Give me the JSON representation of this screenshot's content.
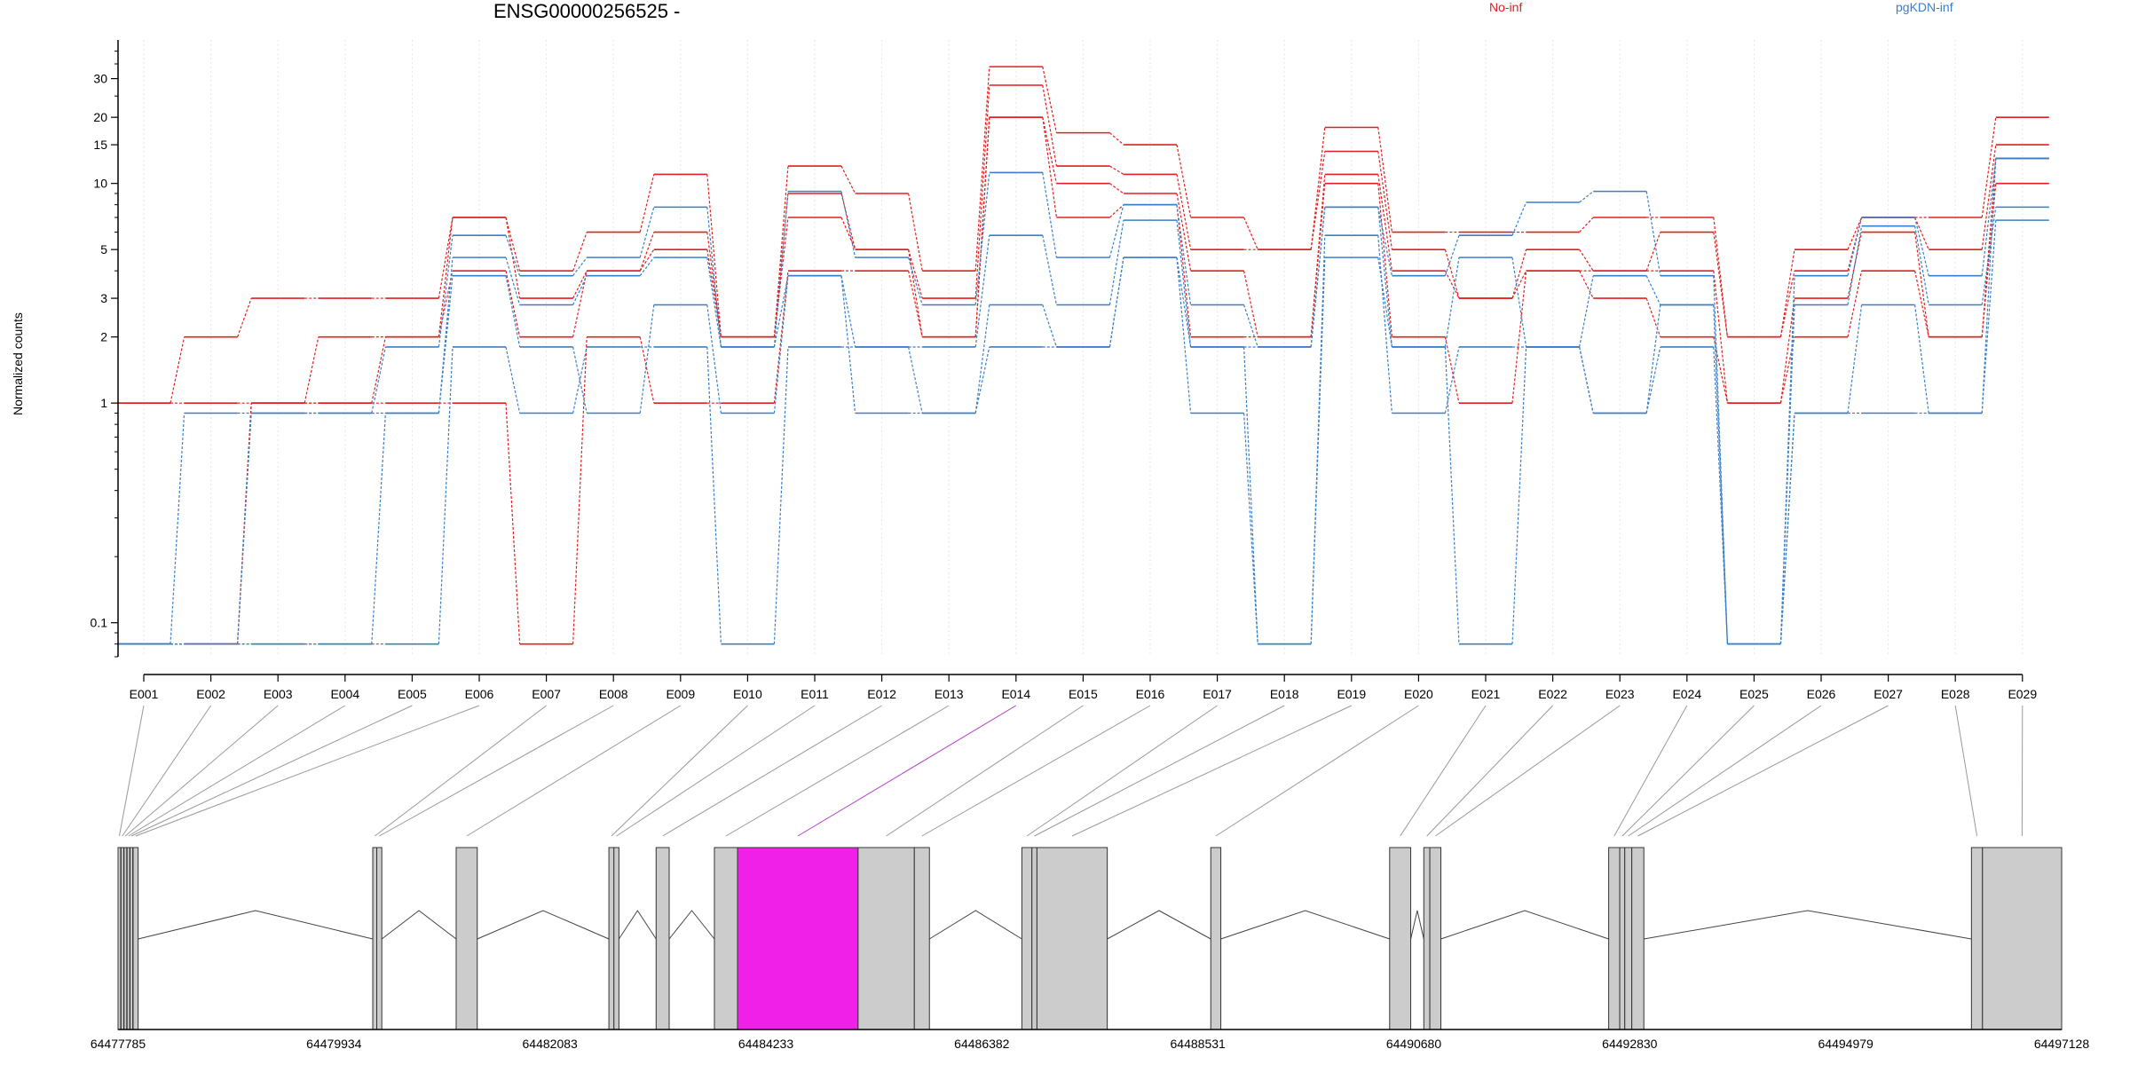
{
  "chart_data": {
    "type": "line",
    "title": "ENSG00000256525 -",
    "ylabel": "Normalized counts",
    "xlabel": "",
    "y_scale": "log",
    "ylim": [
      0.07,
      45
    ],
    "yticks": [
      "0.1",
      "1",
      "2",
      "3",
      "5",
      "10",
      "15",
      "20",
      "30"
    ],
    "grid": "vertical dotted at exons",
    "legend_position": "top-right",
    "categories": [
      "E001",
      "E002",
      "E003",
      "E004",
      "E005",
      "E006",
      "E007",
      "E008",
      "E009",
      "E010",
      "E011",
      "E012",
      "E013",
      "E014",
      "E015",
      "E016",
      "E017",
      "E018",
      "E019",
      "E020",
      "E021",
      "E022",
      "E023",
      "E024",
      "E025",
      "E026",
      "E027",
      "E028",
      "E029"
    ],
    "groups": [
      {
        "name": "No-inf",
        "color": "#e02020"
      },
      {
        "name": "pgKDN-inf",
        "color": "#3a7fc6"
      }
    ],
    "series": [
      {
        "group": 0,
        "values": [
          1,
          2,
          3,
          3,
          3,
          7,
          4,
          6,
          11,
          2,
          12,
          9,
          4,
          34,
          17,
          15,
          7,
          5,
          18,
          6,
          6,
          6,
          7,
          7,
          2,
          5,
          7,
          7,
          20
        ]
      },
      {
        "group": 0,
        "values": [
          1,
          1,
          1,
          2,
          2,
          7,
          3,
          4,
          6,
          2,
          9,
          5,
          3,
          28,
          12,
          11,
          5,
          5,
          14,
          5,
          3,
          5,
          4,
          6,
          2,
          4,
          7,
          5,
          15
        ]
      },
      {
        "group": 0,
        "values": [
          0.08,
          0.08,
          1,
          1,
          2,
          4,
          2,
          4,
          5,
          2,
          7,
          5,
          2,
          20,
          10,
          9,
          4,
          2,
          11,
          4,
          3,
          4,
          4,
          4,
          1,
          3,
          6,
          2,
          13
        ]
      },
      {
        "group": 0,
        "values": [
          0.08,
          0.08,
          1,
          1,
          1,
          1,
          0.08,
          2,
          1,
          1,
          4,
          4,
          2,
          20,
          7,
          8,
          2,
          2,
          10,
          2,
          1,
          4,
          3,
          2,
          1,
          2,
          4,
          2,
          10
        ]
      },
      {
        "group": 1,
        "values": [
          0.08,
          0.9,
          0.9,
          0.9,
          1.8,
          5.8,
          3.8,
          4.6,
          7.8,
          1.8,
          9.2,
          4.6,
          2.8,
          11.2,
          4.6,
          8,
          2.8,
          1.8,
          7.8,
          3.8,
          5.8,
          8.2,
          9.2,
          3.8,
          0.08,
          3.8,
          7,
          3.8,
          13
        ]
      },
      {
        "group": 1,
        "values": [
          0.08,
          0.08,
          0.9,
          0.9,
          0.9,
          4.6,
          2.8,
          3.8,
          4.6,
          1.8,
          3.8,
          1.8,
          1.8,
          5.8,
          2.8,
          6.8,
          1.8,
          1.8,
          7.8,
          1.8,
          4.6,
          1.8,
          3.8,
          2.8,
          0.08,
          2.8,
          6.4,
          2.8,
          7.8
        ]
      },
      {
        "group": 1,
        "values": [
          0.08,
          0.08,
          0.08,
          0.08,
          0.9,
          3.8,
          1.8,
          0.9,
          2.8,
          0.9,
          3.8,
          0.9,
          0.9,
          2.8,
          1.8,
          4.6,
          0.9,
          0.08,
          5.8,
          0.9,
          1.8,
          1.8,
          0.9,
          2.8,
          0.08,
          0.9,
          2.8,
          0.9,
          6.8
        ]
      },
      {
        "group": 1,
        "values": [
          0.08,
          0.08,
          0.08,
          0.08,
          0.08,
          1.8,
          0.9,
          1.8,
          1.8,
          0.08,
          1.8,
          1.8,
          0.9,
          1.8,
          1.8,
          4.6,
          1.8,
          0.08,
          4.6,
          1.8,
          0.08,
          1.8,
          0.9,
          1.8,
          0.08,
          0.9,
          0.9,
          0.9,
          13
        ]
      }
    ],
    "genomic_axis": {
      "ticks": [
        "64477785",
        "64479934",
        "64482083",
        "64484233",
        "64486382",
        "64488531",
        "64490680",
        "64492830",
        "64494979",
        "64497128"
      ],
      "start": 64477785,
      "end": 64497128
    },
    "exons": [
      {
        "id": "E001",
        "start": 64477785,
        "end": 64477810
      },
      {
        "id": "E002",
        "start": 64477815,
        "end": 64477840
      },
      {
        "id": "E003",
        "start": 64477845,
        "end": 64477870
      },
      {
        "id": "E004",
        "start": 64477875,
        "end": 64477900
      },
      {
        "id": "E005",
        "start": 64477905,
        "end": 64477930
      },
      {
        "id": "E006",
        "start": 64477935,
        "end": 64477985
      },
      {
        "id": "E007",
        "start": 64480320,
        "end": 64480360
      },
      {
        "id": "E008",
        "start": 64480360,
        "end": 64480410
      },
      {
        "id": "E009",
        "start": 64481150,
        "end": 64481360
      },
      {
        "id": "E010",
        "start": 64482670,
        "end": 64482720
      },
      {
        "id": "E011",
        "start": 64482720,
        "end": 64482770
      },
      {
        "id": "E012",
        "start": 64483140,
        "end": 64483270
      },
      {
        "id": "E013",
        "start": 64483720,
        "end": 64483950
      },
      {
        "id": "E014",
        "start": 64483950,
        "end": 64485150,
        "highlight": true
      },
      {
        "id": "E015",
        "start": 64485150,
        "end": 64485710
      },
      {
        "id": "E016",
        "start": 64485710,
        "end": 64485860
      },
      {
        "id": "E017",
        "start": 64486780,
        "end": 64486880
      },
      {
        "id": "E018",
        "start": 64486880,
        "end": 64486930
      },
      {
        "id": "E019",
        "start": 64486930,
        "end": 64487630
      },
      {
        "id": "E020",
        "start": 64488660,
        "end": 64488760
      },
      {
        "id": "E021",
        "start": 64490440,
        "end": 64490650
      },
      {
        "id": "E022",
        "start": 64490780,
        "end": 64490840
      },
      {
        "id": "E023",
        "start": 64490840,
        "end": 64490950
      },
      {
        "id": "E024",
        "start": 64492620,
        "end": 64492730
      },
      {
        "id": "E025",
        "start": 64492730,
        "end": 64492780
      },
      {
        "id": "E026",
        "start": 64492780,
        "end": 64492850
      },
      {
        "id": "E027",
        "start": 64492850,
        "end": 64492970
      },
      {
        "id": "E028",
        "start": 64496230,
        "end": 64496340
      },
      {
        "id": "E029",
        "start": 64496340,
        "end": 64497128
      }
    ],
    "introns": [
      [
        64477985,
        64480320
      ],
      [
        64480410,
        64481150
      ],
      [
        64481360,
        64482670
      ],
      [
        64482770,
        64483140
      ],
      [
        64483270,
        64483720
      ],
      [
        64485860,
        64486780
      ],
      [
        64487630,
        64488660
      ],
      [
        64488760,
        64490440
      ],
      [
        64490650,
        64490780
      ],
      [
        64490950,
        64492620
      ],
      [
        64492970,
        64496230
      ]
    ]
  },
  "colors": {
    "no_inf": "#e02020",
    "pgkdn_inf": "#3a7fc6",
    "exon_fill": "#cccccc",
    "exon_highlight": "#f020e8",
    "axis": "#000000"
  }
}
